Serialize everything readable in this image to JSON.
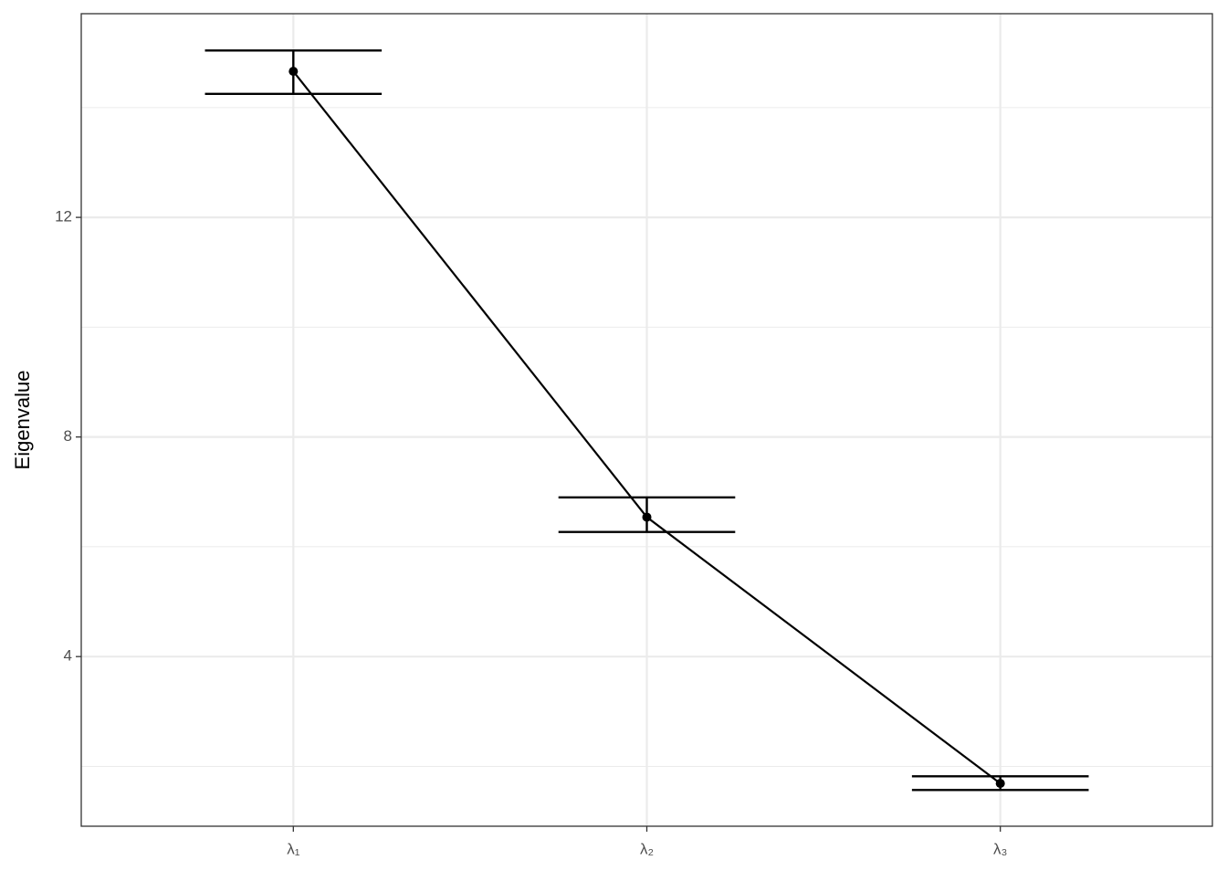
{
  "chart_data": {
    "type": "line",
    "y_label": "Eigenvalue",
    "categories": [
      "λ₁",
      "λ₂",
      "λ₃"
    ],
    "series": [
      {
        "color": "#000000",
        "values": [
          14.66,
          6.54,
          1.69
        ],
        "lower": [
          14.25,
          6.27,
          1.57
        ],
        "upper": [
          15.04,
          6.9,
          1.82
        ]
      }
    ],
    "ylim": [
      0.91,
      15.71
    ],
    "yticks": [
      4,
      8,
      12
    ],
    "y_minor_grid": [
      2,
      6,
      10,
      14
    ],
    "grid": true
  }
}
